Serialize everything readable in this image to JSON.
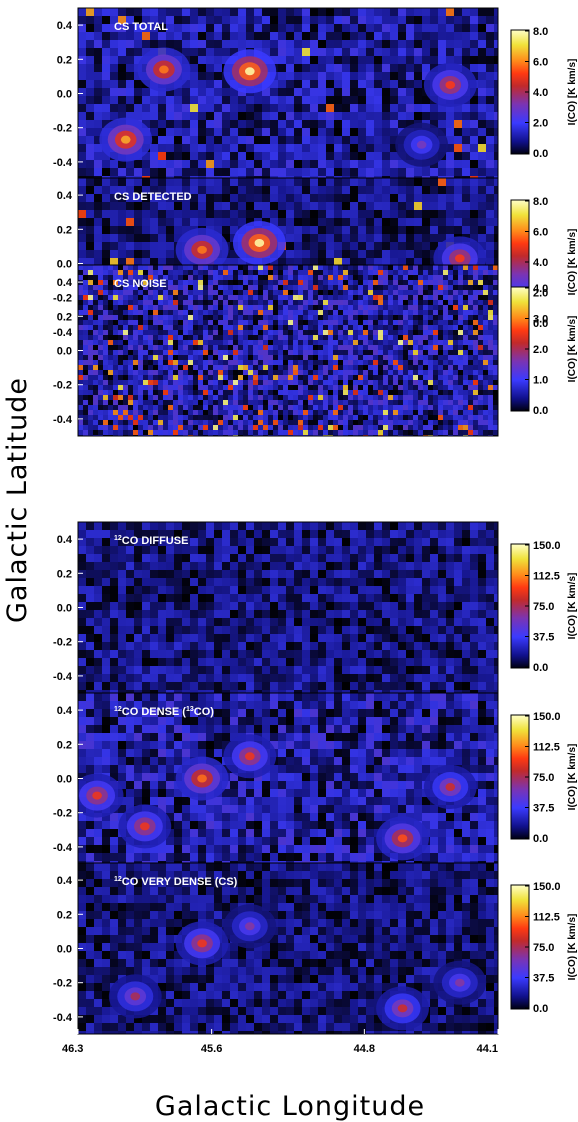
{
  "chart_data": {
    "type": "heatmap",
    "xlabel": "Galactic Longitude",
    "ylabel": "Galactic Latitude",
    "x_ticks": [
      "46.3",
      "45.6",
      "44.8",
      "44.1"
    ],
    "x_range": [
      46.3,
      44.1
    ],
    "y_ticks": [
      "0.4",
      "0.2",
      "0.0",
      "-0.2",
      "-0.4"
    ],
    "y_range": [
      -0.5,
      0.5
    ],
    "colorbar_label": "I(CO) [K km/s]",
    "colormap": [
      "#000000",
      "#1a1aa0",
      "#3a3aff",
      "#7a3ab8",
      "#c02a2a",
      "#ff3a12",
      "#ff7a1a",
      "#f4e33a",
      "#ffffaa"
    ],
    "panels": [
      {
        "title_main": "CS TOTAL",
        "title_pre": "",
        "title_iso": "",
        "title_post": "",
        "colorbar_ticks": [
          "8.0",
          "6.0",
          "4.0",
          "2.0",
          "0.0"
        ],
        "colorbar_range": [
          0,
          8
        ],
        "features": [
          {
            "l": 45.85,
            "b": 0.14,
            "peak": 6.0
          },
          {
            "l": 45.4,
            "b": 0.13,
            "peak": 8.0
          },
          {
            "l": 46.05,
            "b": -0.27,
            "peak": 6.5
          },
          {
            "l": 44.35,
            "b": 0.05,
            "peak": 5.0
          },
          {
            "l": 44.5,
            "b": -0.3,
            "peak": 3.0
          }
        ]
      },
      {
        "title_main": "CS DETECTED",
        "title_pre": "",
        "title_iso": "",
        "title_post": "",
        "colorbar_ticks": [
          "8.0",
          "6.0",
          "4.0",
          "2.0",
          "0.0"
        ],
        "colorbar_range": [
          0,
          8
        ],
        "features": [
          {
            "l": 45.65,
            "b": 0.08,
            "peak": 6.0
          },
          {
            "l": 45.35,
            "b": 0.12,
            "peak": 8.0
          },
          {
            "l": 46.1,
            "b": -0.27,
            "peak": 6.0
          },
          {
            "l": 44.3,
            "b": 0.03,
            "peak": 5.0
          },
          {
            "l": 44.5,
            "b": -0.3,
            "peak": 3.0
          }
        ]
      },
      {
        "title_main": "CS NOISE",
        "title_pre": "",
        "title_iso": "",
        "title_post": "",
        "colorbar_ticks": [
          "4.0",
          "3.0",
          "2.0",
          "1.0",
          "0.0"
        ],
        "colorbar_range": [
          0,
          4
        ],
        "features": []
      },
      {
        "title_main": "",
        "title_pre": "12",
        "title_iso": "",
        "title_post": "CO DIFFUSE",
        "colorbar_ticks": [
          "150.0",
          "112.5",
          "75.0",
          "37.5",
          "0.0"
        ],
        "colorbar_range": [
          0,
          150
        ],
        "features": []
      },
      {
        "title_main": "",
        "title_pre": "12",
        "title_iso": "13",
        "title_post": "CO DENSE (",
        "title_end": "CO)",
        "colorbar_ticks": [
          "150.0",
          "112.5",
          "75.0",
          "37.5",
          "0.0"
        ],
        "colorbar_range": [
          0,
          150
        ],
        "features": [
          {
            "l": 46.2,
            "b": -0.1,
            "peak": 90
          },
          {
            "l": 45.95,
            "b": -0.28,
            "peak": 90
          },
          {
            "l": 45.65,
            "b": 0.0,
            "peak": 110
          },
          {
            "l": 45.4,
            "b": 0.13,
            "peak": 90
          },
          {
            "l": 44.6,
            "b": -0.35,
            "peak": 100
          },
          {
            "l": 44.35,
            "b": -0.05,
            "peak": 80
          }
        ]
      },
      {
        "title_main": "",
        "title_pre": "12",
        "title_iso": "",
        "title_post": "CO VERY DENSE (CS)",
        "colorbar_ticks": [
          "150.0",
          "112.5",
          "75.0",
          "37.5",
          "0.0"
        ],
        "colorbar_range": [
          0,
          150
        ],
        "features": [
          {
            "l": 45.65,
            "b": 0.03,
            "peak": 90
          },
          {
            "l": 45.4,
            "b": 0.13,
            "peak": 60
          },
          {
            "l": 46.0,
            "b": -0.28,
            "peak": 70
          },
          {
            "l": 44.6,
            "b": -0.35,
            "peak": 80
          },
          {
            "l": 44.3,
            "b": -0.2,
            "peak": 60
          }
        ]
      }
    ]
  }
}
